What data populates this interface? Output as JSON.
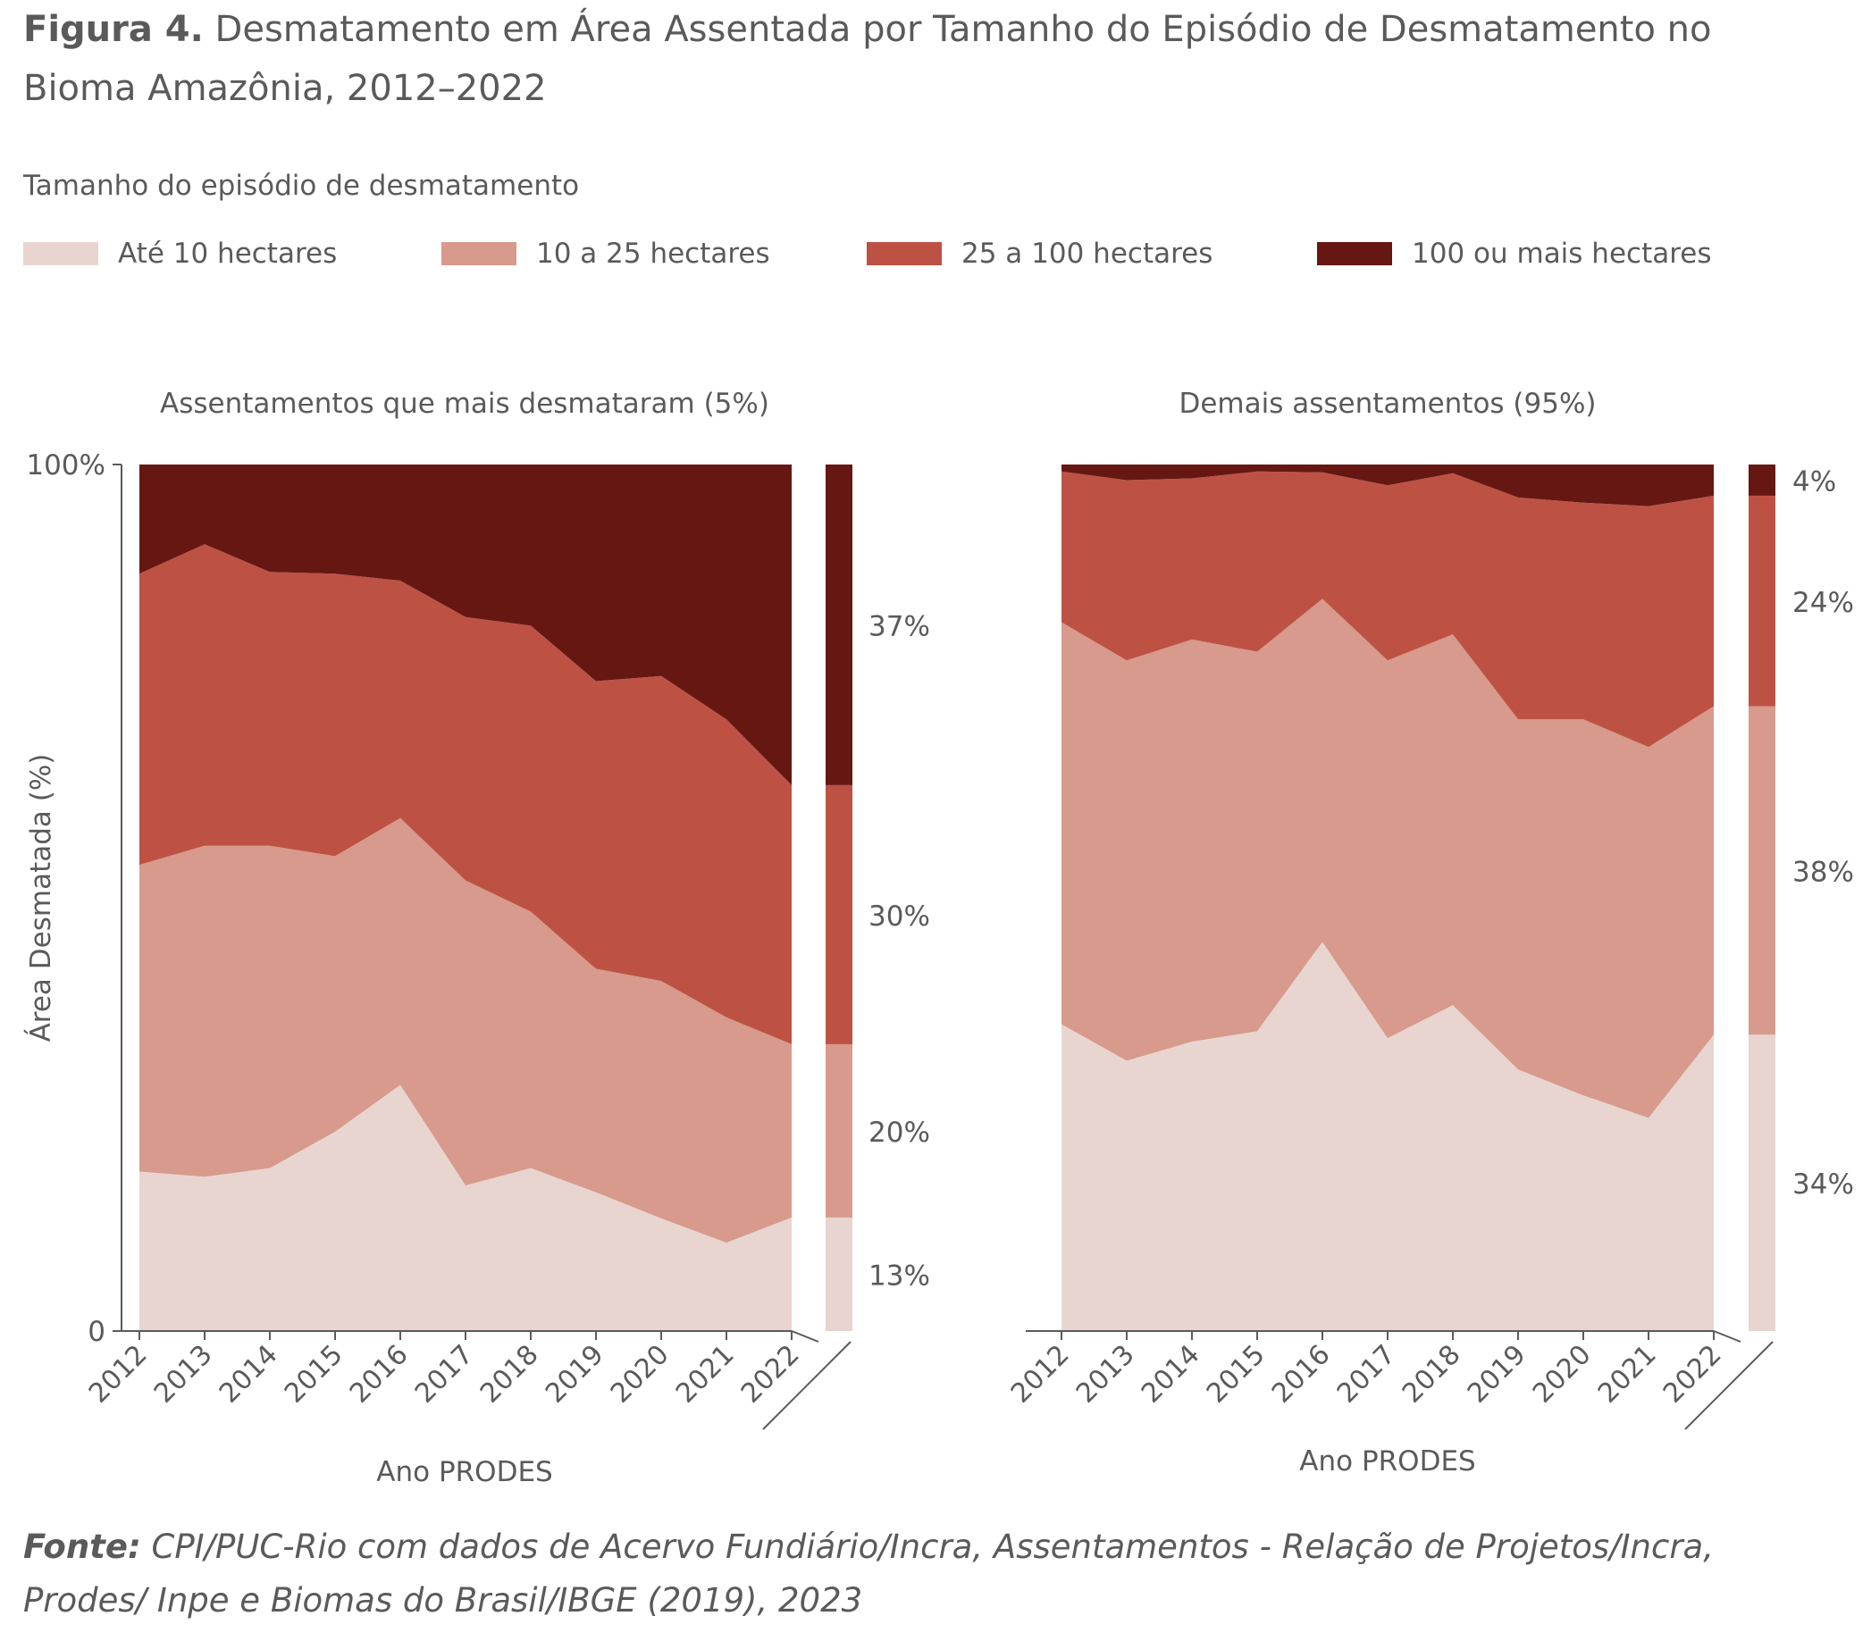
{
  "title": {
    "prefix": "Figura 4.",
    "text": "Desmatamento em Área Assentada por Tamanho do Episódio de Desmatamento no Bioma Amazônia, 2012–2022"
  },
  "legend": {
    "title": "Tamanho do episódio de desmatamento",
    "items": [
      {
        "label": "Até 10 hectares",
        "color": "#e8d5d0"
      },
      {
        "label": "10 a 25 hectares",
        "color": "#d79a8c"
      },
      {
        "label": "25 a 100 hectares",
        "color": "#bd5244"
      },
      {
        "label": "100 ou mais hectares",
        "color": "#661712"
      }
    ]
  },
  "chart_data": [
    {
      "type": "area",
      "stacked": true,
      "title": "Assentamentos que mais desmataram (5%)",
      "xlabel": "Ano PRODES",
      "ylabel": "Área Desmatada (%)",
      "ytick_labels": [
        "100%",
        "0"
      ],
      "ylim": [
        0,
        100
      ],
      "x": [
        "2012",
        "2013",
        "2014",
        "2015",
        "2016",
        "2017",
        "2018",
        "2019",
        "2020",
        "2021",
        "2022"
      ],
      "series": [
        {
          "name": "Até 10 hectares",
          "color": "#e8d5d0",
          "values": [
            18.4,
            17.8,
            18.8,
            23.0,
            28.4,
            16.8,
            18.8,
            16.0,
            13.0,
            10.2,
            13.1
          ]
        },
        {
          "name": "10 a 25 hectares",
          "color": "#d79a8c",
          "values": [
            35.4,
            38.2,
            37.2,
            31.8,
            30.8,
            35.2,
            29.6,
            25.8,
            27.4,
            26.0,
            20.0
          ]
        },
        {
          "name": "25 a 100 hectares",
          "color": "#bd5244",
          "values": [
            33.6,
            34.8,
            31.6,
            32.6,
            27.4,
            30.4,
            33.0,
            33.2,
            35.2,
            34.4,
            29.9
          ]
        },
        {
          "name": "100 ou mais hectares",
          "color": "#661712",
          "values": [
            12.6,
            9.2,
            12.4,
            12.6,
            13.4,
            17.6,
            18.6,
            25.0,
            24.4,
            29.4,
            37.0
          ]
        }
      ],
      "summary_labels": [
        "13%",
        "20%",
        "30%",
        "37%"
      ]
    },
    {
      "type": "area",
      "stacked": true,
      "title": "Demais assentamentos (95%)",
      "xlabel": "Ano PRODES",
      "ylim": [
        0,
        100
      ],
      "x": [
        "2012",
        "2013",
        "2014",
        "2015",
        "2016",
        "2017",
        "2018",
        "2019",
        "2020",
        "2021",
        "2022"
      ],
      "series": [
        {
          "name": "Até 10 hectares",
          "color": "#e8d5d0",
          "values": [
            35.4,
            31.2,
            33.4,
            34.6,
            44.9,
            33.8,
            37.6,
            30.2,
            27.2,
            24.6,
            34.2
          ]
        },
        {
          "name": "10 a 25 hectares",
          "color": "#d79a8c",
          "values": [
            46.4,
            46.2,
            46.4,
            43.8,
            39.6,
            43.6,
            42.8,
            40.4,
            43.4,
            42.8,
            37.9
          ]
        },
        {
          "name": "25 a 100 hectares",
          "color": "#bd5244",
          "values": [
            17.4,
            20.8,
            18.6,
            20.8,
            14.6,
            20.2,
            18.6,
            25.6,
            25.0,
            27.8,
            24.3
          ]
        },
        {
          "name": "100 ou mais hectares",
          "color": "#661712",
          "values": [
            0.8,
            1.8,
            1.6,
            0.8,
            0.9,
            2.4,
            1.0,
            3.8,
            4.4,
            4.8,
            3.6
          ]
        }
      ],
      "summary_labels": [
        "34%",
        "38%",
        "24%",
        "4%"
      ]
    }
  ],
  "source": {
    "prefix": "Fonte:",
    "text": "CPI/PUC-Rio com dados de Acervo Fundiário/Incra, Assentamentos - Relação de Projetos/Incra, Prodes/ Inpe e Biomas do Brasil/IBGE (2019), 2023"
  }
}
